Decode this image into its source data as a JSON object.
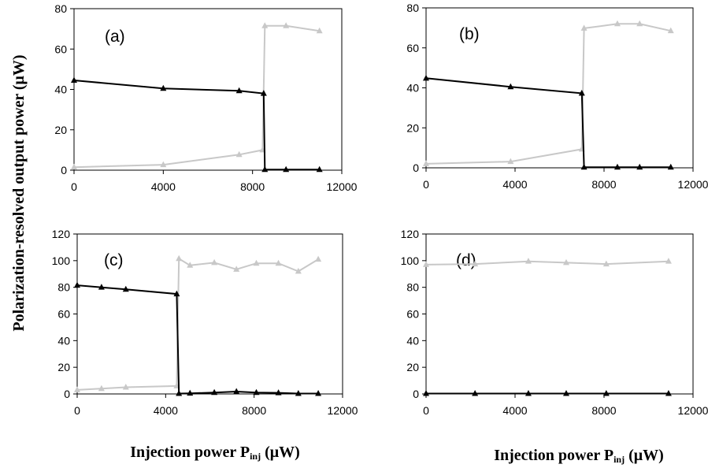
{
  "figure": {
    "ylabel": "Polarization-resolved output power (μW)",
    "xlabel_main": "Injection power P",
    "xlabel_sub": "inj",
    "xlabel_unit": " (μW)"
  },
  "colors": {
    "dark": "#000000",
    "light": "#c8c8c8"
  },
  "chart_data": [
    {
      "type": "line",
      "panel_label": "(a)",
      "xlim": [
        0,
        12000
      ],
      "ylim": [
        0,
        80
      ],
      "xticks": [
        0,
        4000,
        8000,
        12000
      ],
      "yticks": [
        0,
        20,
        40,
        60,
        80
      ],
      "series": [
        {
          "color": "#000000",
          "x": [
            0,
            4000,
            7400,
            8500,
            8550,
            9500,
            11000
          ],
          "y": [
            44.5,
            40.5,
            39.3,
            38,
            0.3,
            0.3,
            0.3
          ]
        },
        {
          "color": "#c8c8c8",
          "x": [
            0,
            4000,
            7400,
            8450,
            8550,
            9500,
            11000
          ],
          "y": [
            1.5,
            2.7,
            7.7,
            10,
            71.5,
            71.5,
            69
          ]
        }
      ]
    },
    {
      "type": "line",
      "panel_label": "(b)",
      "xlim": [
        0,
        12000
      ],
      "ylim": [
        0,
        80
      ],
      "xticks": [
        0,
        4000,
        8000,
        12000
      ],
      "yticks": [
        0,
        20,
        40,
        60,
        80
      ],
      "series": [
        {
          "color": "#000000",
          "x": [
            0,
            3800,
            7000,
            7100,
            8600,
            9600,
            11000
          ],
          "y": [
            44.8,
            40.5,
            37.3,
            0.3,
            0.3,
            0.3,
            0.3
          ]
        },
        {
          "color": "#c8c8c8",
          "x": [
            0,
            3800,
            7000,
            7100,
            8600,
            9600,
            11000
          ],
          "y": [
            2,
            3.1,
            9.3,
            69.8,
            72,
            72,
            68.5
          ]
        }
      ]
    },
    {
      "type": "line",
      "panel_label": "(c)",
      "xlim": [
        0,
        12000
      ],
      "ylim": [
        0,
        120
      ],
      "xticks": [
        0,
        4000,
        8000,
        12000
      ],
      "yticks": [
        0,
        20,
        40,
        60,
        80,
        100,
        120
      ],
      "series": [
        {
          "color": "#000000",
          "x": [
            0,
            1100,
            2200,
            4500,
            4600,
            5100,
            6200,
            7200,
            8100,
            9100,
            10000,
            10900
          ],
          "y": [
            81.5,
            80,
            78.5,
            75,
            0.3,
            0.5,
            1,
            1.8,
            1,
            0.8,
            0.3,
            0.3
          ]
        },
        {
          "color": "#c8c8c8",
          "x": [
            0,
            1100,
            2200,
            4500,
            4600,
            5100,
            6200,
            7200,
            8100,
            9100,
            10000,
            10900
          ],
          "y": [
            3,
            4,
            5,
            6,
            101.5,
            96.5,
            98.5,
            93.5,
            98,
            98,
            92,
            101
          ]
        }
      ]
    },
    {
      "type": "line",
      "panel_label": "(d)",
      "xlim": [
        0,
        12000
      ],
      "ylim": [
        0,
        120
      ],
      "xticks": [
        0,
        4000,
        8000,
        12000
      ],
      "yticks": [
        0,
        20,
        40,
        60,
        80,
        100,
        120
      ],
      "series": [
        {
          "color": "#000000",
          "x": [
            0,
            2200,
            4600,
            6300,
            8100,
            10900
          ],
          "y": [
            0.3,
            0.3,
            0.3,
            0.3,
            0.3,
            0.3
          ]
        },
        {
          "color": "#c8c8c8",
          "x": [
            0,
            2200,
            4600,
            6300,
            8100,
            10900
          ],
          "y": [
            97,
            97.5,
            99.5,
            98.5,
            97.5,
            99.5
          ]
        }
      ]
    }
  ]
}
